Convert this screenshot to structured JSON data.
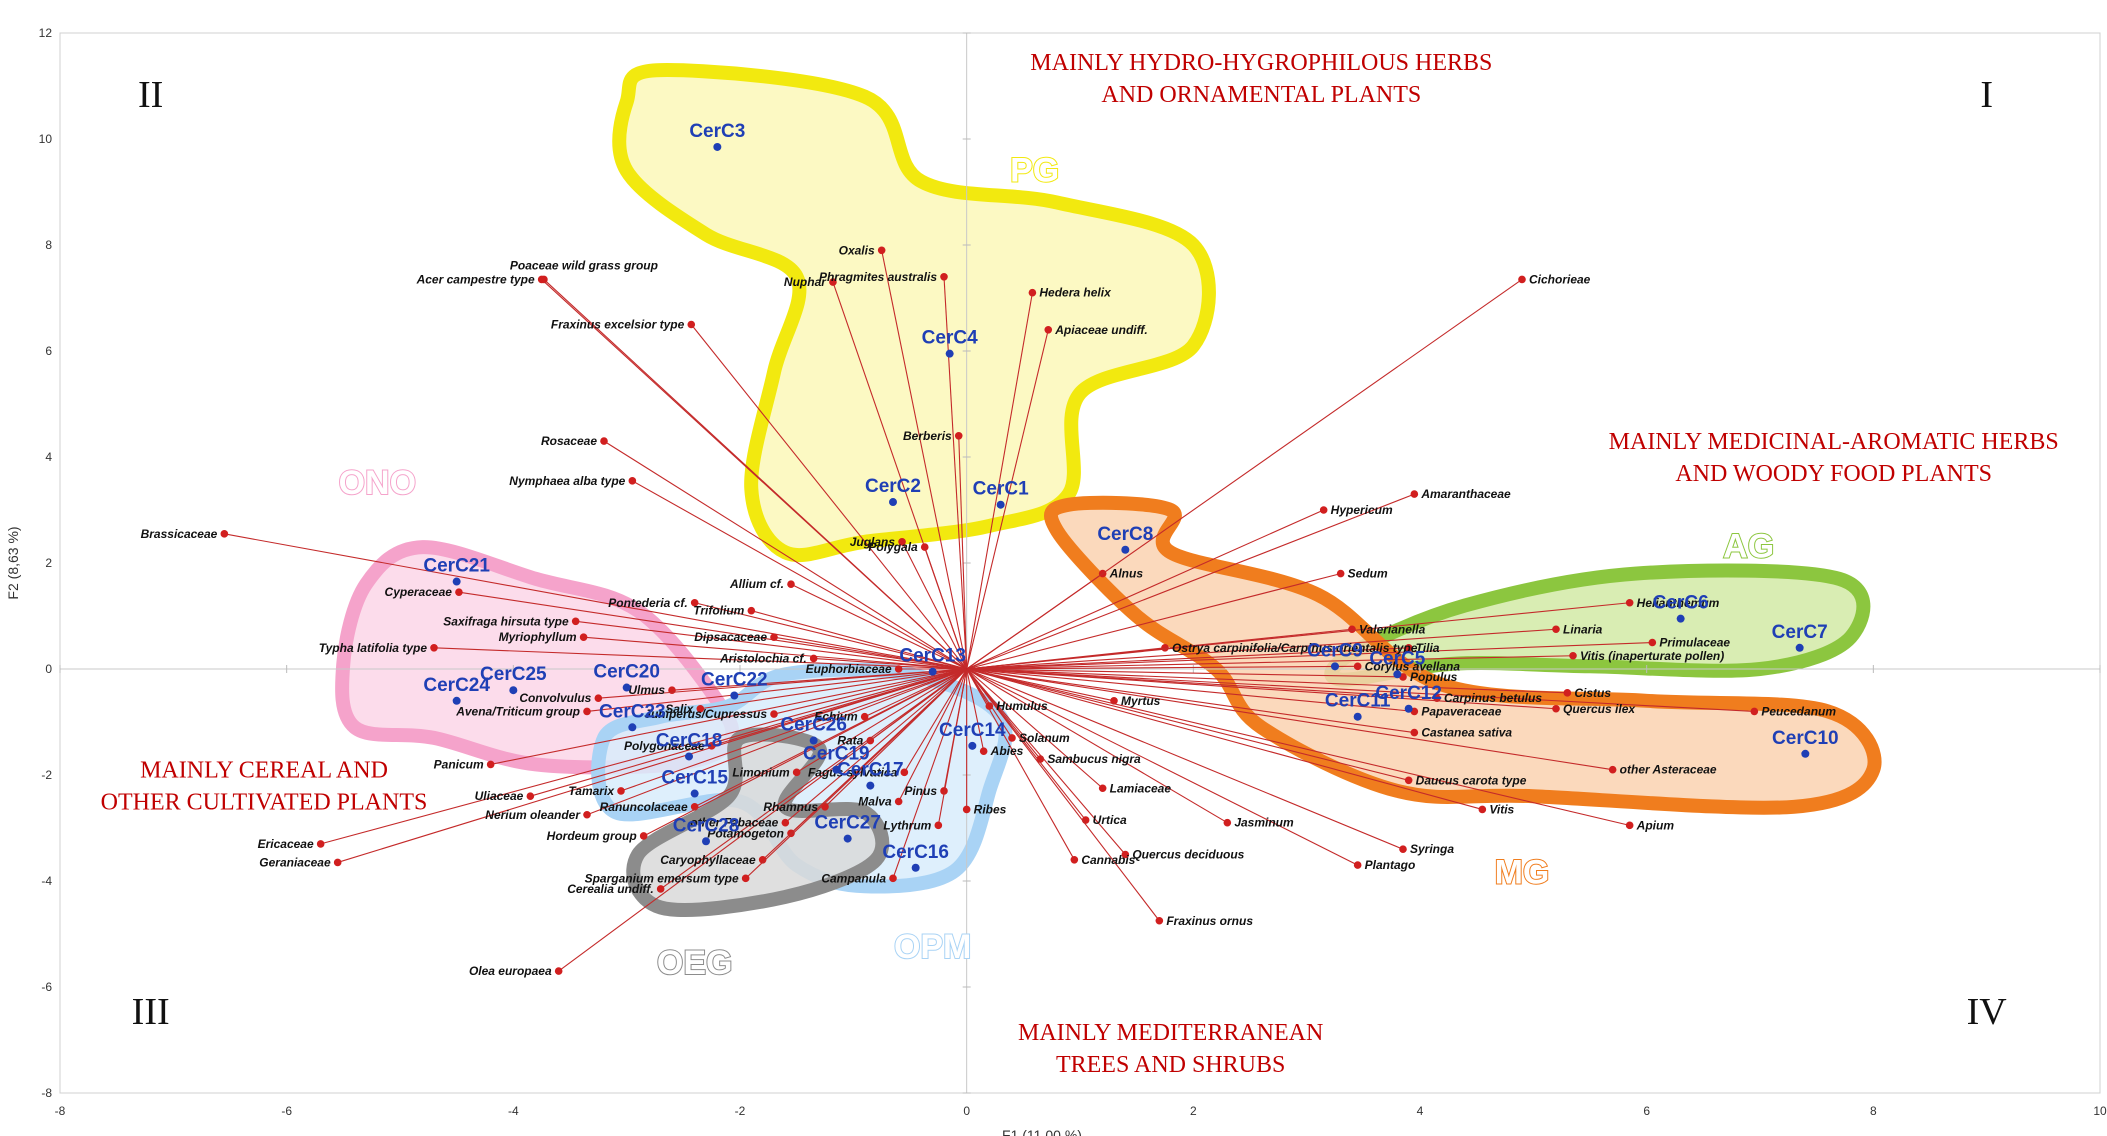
{
  "chart_data": {
    "type": "scatter",
    "title": "",
    "xlabel": "F1 (11,00 %)",
    "ylabel": "F2 (8,63 %)",
    "xlim": [
      -8,
      10
    ],
    "ylim": [
      -8,
      12
    ],
    "x_ticks": [
      "-8",
      "-6",
      "-4",
      "-2",
      "0",
      "2",
      "4",
      "6",
      "8",
      "10"
    ],
    "y_ticks": [
      "-8",
      "-6",
      "-4",
      "-2",
      "0",
      "2",
      "4",
      "6",
      "8",
      "10",
      "12"
    ],
    "grid": false,
    "quadrants": [
      {
        "label": "I",
        "x": 9.0,
        "y": 10.6
      },
      {
        "label": "II",
        "x": -7.2,
        "y": 10.6
      },
      {
        "label": "III",
        "x": -7.2,
        "y": -6.7
      },
      {
        "label": "IV",
        "x": 9.0,
        "y": -6.7
      }
    ],
    "region_annotations": [
      {
        "lines": [
          "MAINLY HYDRO-HYGROPHILOUS HERBS",
          "AND ORNAMENTAL PLANTS"
        ],
        "x": 2.6,
        "y": 11.3
      },
      {
        "lines": [
          "MAINLY MEDICINAL-AROMATIC HERBS",
          "AND WOODY FOOD PLANTS"
        ],
        "x": 7.65,
        "y": 4.15
      },
      {
        "lines": [
          "MAINLY CEREAL AND",
          "OTHER CULTIVATED PLANTS"
        ],
        "x": -6.2,
        "y": -2.05
      },
      {
        "lines": [
          "MAINLY MEDITERRANEAN",
          "TREES AND SHRUBS"
        ],
        "x": 1.8,
        "y": -7.0
      }
    ],
    "groups": [
      {
        "name": "PG",
        "color": "#f2e90f",
        "fill": "#fbf8b8",
        "label_x": 0.6,
        "label_y": 9.2,
        "outline": [
          [
            -2.7,
            11.3
          ],
          [
            -0.9,
            10.8
          ],
          [
            -0.4,
            9.2
          ],
          [
            0.8,
            8.8
          ],
          [
            2.0,
            8.0
          ],
          [
            2.0,
            6.1
          ],
          [
            1.0,
            5.2
          ],
          [
            0.9,
            3.3
          ],
          [
            0.2,
            2.7
          ],
          [
            -0.9,
            2.4
          ],
          [
            -1.6,
            2.2
          ],
          [
            -1.9,
            3.4
          ],
          [
            -1.7,
            5.6
          ],
          [
            -1.5,
            7.4
          ],
          [
            -2.3,
            8.2
          ],
          [
            -3.0,
            9.4
          ],
          [
            -3.0,
            10.7
          ]
        ]
      },
      {
        "name": "ONO",
        "color": "#f5a3cb",
        "fill": "#fbd6e8",
        "label_x": -5.2,
        "label_y": 3.3,
        "outline": [
          [
            -4.8,
            2.3
          ],
          [
            -3.8,
            1.7
          ],
          [
            -2.9,
            1.1
          ],
          [
            -2.2,
            -0.6
          ],
          [
            -2.1,
            -1.4
          ],
          [
            -2.6,
            -1.8
          ],
          [
            -3.8,
            -1.8
          ],
          [
            -4.7,
            -1.3
          ],
          [
            -5.4,
            -1.1
          ],
          [
            -5.5,
            0.1
          ],
          [
            -5.3,
            1.6
          ]
        ]
      },
      {
        "name": "AG",
        "color": "#8cc63f",
        "fill": "#d2eaa6",
        "label_x": 6.9,
        "label_y": 2.1,
        "outline": [
          [
            3.4,
            0.3
          ],
          [
            4.4,
            1.2
          ],
          [
            5.9,
            1.8
          ],
          [
            7.7,
            1.7
          ],
          [
            7.8,
            0.6
          ],
          [
            7.0,
            0.0
          ],
          [
            5.5,
            0.05
          ],
          [
            4.3,
            0.1
          ],
          [
            3.3,
            -0.2
          ]
        ]
      },
      {
        "name": "MG",
        "color": "#f07d1e",
        "fill": "#fad2b0",
        "label_x": 4.9,
        "label_y": -4.05,
        "outline": [
          [
            0.9,
            3.1
          ],
          [
            1.8,
            3.0
          ],
          [
            1.8,
            2.2
          ],
          [
            3.1,
            1.4
          ],
          [
            4.2,
            -0.3
          ],
          [
            6.0,
            -0.6
          ],
          [
            7.6,
            -0.8
          ],
          [
            8.0,
            -1.9
          ],
          [
            7.3,
            -2.6
          ],
          [
            5.0,
            -2.4
          ],
          [
            3.8,
            -2.3
          ],
          [
            2.6,
            -1.1
          ],
          [
            2.2,
            0.0
          ],
          [
            1.5,
            1.0
          ],
          [
            0.8,
            2.6
          ]
        ]
      },
      {
        "name": "OPM",
        "color": "#a9d3f5",
        "fill": "#d8ecfb",
        "label_x": -0.3,
        "label_y": -5.45,
        "outline": [
          [
            -1.6,
            -0.1
          ],
          [
            -0.5,
            -0.1
          ],
          [
            0.3,
            -0.9
          ],
          [
            0.2,
            -2.3
          ],
          [
            -0.1,
            -3.8
          ],
          [
            -0.9,
            -4.1
          ],
          [
            -1.5,
            -3.7
          ],
          [
            -2.0,
            -2.5
          ],
          [
            -3.1,
            -2.7
          ],
          [
            -3.2,
            -1.3
          ],
          [
            -2.7,
            -0.9
          ],
          [
            -2.1,
            -0.7
          ]
        ]
      },
      {
        "name": "OEG",
        "color": "#8c8c8c",
        "fill": "#d9d9d9",
        "label_x": -2.4,
        "label_y": -5.75,
        "outline": [
          [
            -2.0,
            -1.3
          ],
          [
            -1.3,
            -1.5
          ],
          [
            -1.6,
            -2.6
          ],
          [
            -0.9,
            -2.7
          ],
          [
            -0.8,
            -3.6
          ],
          [
            -1.6,
            -4.3
          ],
          [
            -2.7,
            -4.5
          ],
          [
            -2.9,
            -3.5
          ],
          [
            -2.1,
            -2.4
          ]
        ]
      }
    ],
    "origin": [
      0,
      0
    ],
    "variables": [
      {
        "label": "Poaceae wild grass group",
        "x": -3.73,
        "y": 7.35,
        "labelup": true
      },
      {
        "label": "Acer campestre type",
        "x": -3.75,
        "y": 7.35
      },
      {
        "label": "Fraxinus excelsior type",
        "x": -2.43,
        "y": 6.5
      },
      {
        "label": "Oxalis",
        "x": -0.75,
        "y": 7.9
      },
      {
        "label": "Nuphar",
        "x": -1.18,
        "y": 7.3
      },
      {
        "label": "Phragmites australis",
        "x": -0.2,
        "y": 7.4
      },
      {
        "label": "Hedera helix",
        "x": 0.58,
        "y": 7.1
      },
      {
        "label": "Apiaceae undiff.",
        "x": 0.72,
        "y": 6.4
      },
      {
        "label": "Berberis",
        "x": -0.07,
        "y": 4.4
      },
      {
        "label": "Juglans",
        "x": -0.57,
        "y": 2.4
      },
      {
        "label": "Polygala",
        "x": -0.37,
        "y": 2.3
      },
      {
        "label": "Rosaceae",
        "x": -3.2,
        "y": 4.3
      },
      {
        "label": "Nymphaea alba type",
        "x": -2.95,
        "y": 3.55
      },
      {
        "label": "Brassicaceae",
        "x": -6.55,
        "y": 2.55
      },
      {
        "label": "Allium cf.",
        "x": -1.55,
        "y": 1.6
      },
      {
        "label": "Trifolium",
        "x": -1.9,
        "y": 1.1
      },
      {
        "label": "Pontederia cf.",
        "x": -2.4,
        "y": 1.25
      },
      {
        "label": "Cyperaceae",
        "x": -4.48,
        "y": 1.45
      },
      {
        "label": "Saxifraga hirsuta type",
        "x": -3.45,
        "y": 0.9
      },
      {
        "label": "Myriophyllum",
        "x": -3.38,
        "y": 0.6
      },
      {
        "label": "Dipsacaceae",
        "x": -1.7,
        "y": 0.6
      },
      {
        "label": "Aristolochia cf.",
        "x": -1.35,
        "y": 0.2
      },
      {
        "label": "Typha latifolia type",
        "x": -4.7,
        "y": 0.4
      },
      {
        "label": "Euphorbiaceae",
        "x": -0.6,
        "y": 0.0
      },
      {
        "label": "Ulmus",
        "x": -2.6,
        "y": -0.4
      },
      {
        "label": "Convolvulus",
        "x": -3.25,
        "y": -0.55
      },
      {
        "label": "Salix",
        "x": -2.35,
        "y": -0.75
      },
      {
        "label": "Juniperus/Cupressus",
        "x": -1.7,
        "y": -0.85
      },
      {
        "label": "Avena/Triticum group",
        "x": -3.35,
        "y": -0.8
      },
      {
        "label": "Echium",
        "x": -0.9,
        "y": -0.9
      },
      {
        "label": "Rata",
        "x": -0.85,
        "y": -1.35
      },
      {
        "label": "Polygonaceae",
        "x": -2.25,
        "y": -1.45
      },
      {
        "label": "Limonium",
        "x": -1.5,
        "y": -1.95
      },
      {
        "label": "Panicum",
        "x": -4.2,
        "y": -1.8
      },
      {
        "label": "Tamarix",
        "x": -3.05,
        "y": -2.3
      },
      {
        "label": "Uliaceae",
        "x": -3.85,
        "y": -2.4
      },
      {
        "label": "Ranuncolaceae",
        "x": -2.4,
        "y": -2.6
      },
      {
        "label": "Nerium oleander",
        "x": -3.35,
        "y": -2.75
      },
      {
        "label": "other Fabaceae",
        "x": -1.6,
        "y": -2.9
      },
      {
        "label": "Rhamnus",
        "x": -1.25,
        "y": -2.6
      },
      {
        "label": "Hordeum group",
        "x": -2.85,
        "y": -3.15
      },
      {
        "label": "Potamogeton",
        "x": -1.55,
        "y": -3.1
      },
      {
        "label": "Ericaceae",
        "x": -5.7,
        "y": -3.3
      },
      {
        "label": "Geraniaceae",
        "x": -5.55,
        "y": -3.65
      },
      {
        "label": "Caryophyllaceae",
        "x": -1.8,
        "y": -3.6
      },
      {
        "label": "Cerealia undiff.",
        "x": -2.7,
        "y": -4.15
      },
      {
        "label": "Sparganium emersum type",
        "x": -1.95,
        "y": -3.95
      },
      {
        "label": "Campanula",
        "x": -0.65,
        "y": -3.95
      },
      {
        "label": "Olea europaea",
        "x": -3.6,
        "y": -5.7
      },
      {
        "label": "Fagus sylvatica",
        "x": -0.55,
        "y": -1.95
      },
      {
        "label": "Malva",
        "x": -0.6,
        "y": -2.5
      },
      {
        "label": "Pinus",
        "x": -0.2,
        "y": -2.3
      },
      {
        "label": "Ribes",
        "x": 0.0,
        "y": -2.65
      },
      {
        "label": "Lythrum",
        "x": -0.25,
        "y": -2.95
      },
      {
        "label": "Humulus",
        "x": 0.2,
        "y": -0.7
      },
      {
        "label": "Solanum",
        "x": 0.4,
        "y": -1.3
      },
      {
        "label": "Abies",
        "x": 0.15,
        "y": -1.55
      },
      {
        "label": "Sambucus nigra",
        "x": 0.65,
        "y": -1.7
      },
      {
        "label": "Lamiaceae",
        "x": 1.2,
        "y": -2.25
      },
      {
        "label": "Urtica",
        "x": 1.05,
        "y": -2.85
      },
      {
        "label": "Quercus deciduous",
        "x": 1.4,
        "y": -3.5
      },
      {
        "label": "Cannabis",
        "x": 0.95,
        "y": -3.6
      },
      {
        "label": "Fraxinus ornus",
        "x": 1.7,
        "y": -4.75
      },
      {
        "label": "Myrtus",
        "x": 1.3,
        "y": -0.6
      },
      {
        "label": "Jasminum",
        "x": 2.3,
        "y": -2.9
      },
      {
        "label": "Plantago",
        "x": 3.45,
        "y": -3.7
      },
      {
        "label": "Syringa",
        "x": 3.85,
        "y": -3.4
      },
      {
        "label": "Alnus",
        "x": 1.2,
        "y": 1.8
      },
      {
        "label": "Ostrya carpinifolia/Carpinus orientalis type",
        "x": 1.75,
        "y": 0.4
      },
      {
        "label": "Cichorieae",
        "x": 4.9,
        "y": 7.35
      },
      {
        "label": "Hypericum",
        "x": 3.15,
        "y": 3.0
      },
      {
        "label": "Amaranthaceae",
        "x": 3.95,
        "y": 3.3
      },
      {
        "label": "Sedum",
        "x": 3.3,
        "y": 1.8
      },
      {
        "label": "Valerianella",
        "x": 3.4,
        "y": 0.75
      },
      {
        "label": "Tilia",
        "x": 3.9,
        "y": 0.4
      },
      {
        "label": "Corylus avellana",
        "x": 3.45,
        "y": 0.05
      },
      {
        "label": "Populus",
        "x": 3.85,
        "y": -0.15
      },
      {
        "label": "Carpinus betulus",
        "x": 4.15,
        "y": -0.55
      },
      {
        "label": "Papaveraceae",
        "x": 3.95,
        "y": -0.8
      },
      {
        "label": "Castanea sativa",
        "x": 3.95,
        "y": -1.2
      },
      {
        "label": "Daucus carota type",
        "x": 3.9,
        "y": -2.1
      },
      {
        "label": "Vitis",
        "x": 4.55,
        "y": -2.65
      },
      {
        "label": "Helianthemum",
        "x": 5.85,
        "y": 1.25
      },
      {
        "label": "Linaria",
        "x": 5.2,
        "y": 0.75
      },
      {
        "label": "Primulaceae",
        "x": 6.05,
        "y": 0.5
      },
      {
        "label": "Vitis (inaperturate pollen)",
        "x": 5.35,
        "y": 0.25
      },
      {
        "label": "Cistus",
        "x": 5.3,
        "y": -0.45
      },
      {
        "label": "Quercus ilex",
        "x": 5.2,
        "y": -0.75
      },
      {
        "label": "Peucedanum",
        "x": 6.95,
        "y": -0.8
      },
      {
        "label": "other Asteraceae",
        "x": 5.7,
        "y": -1.9
      },
      {
        "label": "Apium",
        "x": 5.85,
        "y": -2.95
      }
    ],
    "observations": [
      {
        "label": "CerC3",
        "x": -2.2,
        "y": 9.85
      },
      {
        "label": "CerC4",
        "x": -0.15,
        "y": 5.95
      },
      {
        "label": "CerC2",
        "x": -0.65,
        "y": 3.15
      },
      {
        "label": "CerC1",
        "x": 0.3,
        "y": 3.1
      },
      {
        "label": "CerC8",
        "x": 1.4,
        "y": 2.25
      },
      {
        "label": "CerC21",
        "x": -4.5,
        "y": 1.65
      },
      {
        "label": "CerC25",
        "x": -4.0,
        "y": -0.4
      },
      {
        "label": "CerC20",
        "x": -3.0,
        "y": -0.35
      },
      {
        "label": "CerC22",
        "x": -2.05,
        "y": -0.5
      },
      {
        "label": "CerC24",
        "x": -4.5,
        "y": -0.6
      },
      {
        "label": "CerC23",
        "x": -2.95,
        "y": -1.1
      },
      {
        "label": "CerC18",
        "x": -2.45,
        "y": -1.65
      },
      {
        "label": "CerC15",
        "x": -2.4,
        "y": -2.35
      },
      {
        "label": "CerC26",
        "x": -1.35,
        "y": -1.35
      },
      {
        "label": "CerC19",
        "x": -1.15,
        "y": -1.9
      },
      {
        "label": "CerC17",
        "x": -0.85,
        "y": -2.2
      },
      {
        "label": "CerC13",
        "x": -0.3,
        "y": -0.05
      },
      {
        "label": "CerC14",
        "x": 0.05,
        "y": -1.45
      },
      {
        "label": "CerC28",
        "x": -2.3,
        "y": -3.25
      },
      {
        "label": "CerC27",
        "x": -1.05,
        "y": -3.2
      },
      {
        "label": "CerC16",
        "x": -0.45,
        "y": -3.75
      },
      {
        "label": "CerC9",
        "x": 3.25,
        "y": 0.05
      },
      {
        "label": "CerC5",
        "x": 3.8,
        "y": -0.1
      },
      {
        "label": "CerC11",
        "x": 3.45,
        "y": -0.9
      },
      {
        "label": "CerC12",
        "x": 3.9,
        "y": -0.75
      },
      {
        "label": "CerC6",
        "x": 6.3,
        "y": 0.95
      },
      {
        "label": "CerC7",
        "x": 7.35,
        "y": 0.4
      },
      {
        "label": "CerC10",
        "x": 7.4,
        "y": -1.6
      }
    ]
  }
}
